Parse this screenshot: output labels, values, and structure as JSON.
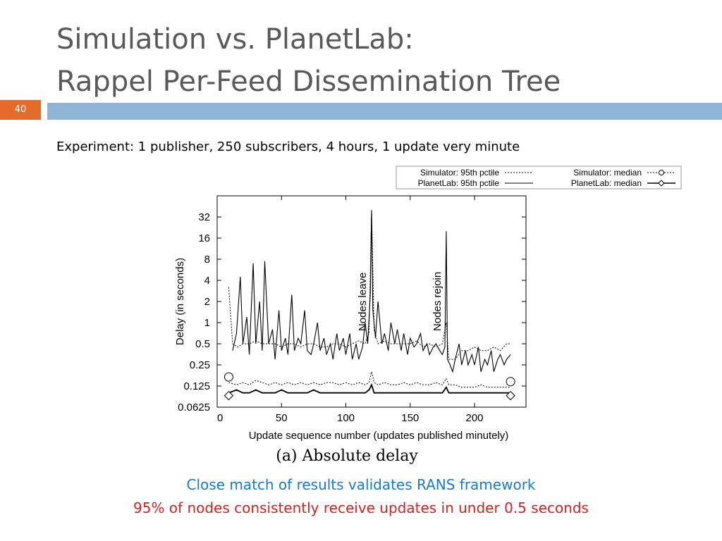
{
  "slide": {
    "title_line1": "Simulation vs. PlanetLab:",
    "title_line2": "Rappel Per-Feed Dissemination Tree",
    "page_number": "40",
    "experiment": "Experiment: 1 publisher, 250 subscribers, 4 hours, 1 update very minute",
    "note_match": "Close match of results validates RANS framework",
    "note_percentile": "95% of nodes consistently receive updates in under 0.5 seconds",
    "colors": {
      "title": "#595959",
      "bar": "#8eb4d6",
      "page_badge": "#e56b2a",
      "note_blue": "#1a7bc4",
      "note_red": "#e01d1d"
    }
  },
  "chart_data": {
    "type": "line",
    "title": "",
    "caption": "(a)  Absolute delay",
    "xlabel": "Update sequence number (updates published minutely)",
    "ylabel": "Delay (in seconds)",
    "xlim": [
      0,
      240
    ],
    "ylim": [
      0.0625,
      64
    ],
    "yscale": "log2",
    "xticks": [
      "0",
      "50",
      "100",
      "150",
      "200"
    ],
    "yticks": [
      "0.0625",
      "0.125",
      "0.25",
      "0.5",
      "1",
      "2",
      "4",
      "8",
      "16",
      "32"
    ],
    "legend": {
      "placement": "top-right-outside",
      "entries": [
        "Simulator: 95th pctile",
        "Simulator: median",
        "PlanetLab: 95th pctile",
        "PlanetLab: median"
      ]
    },
    "annotations": [
      {
        "text": "Nodes leave",
        "x": 120
      },
      {
        "text": "Nodes rejoin",
        "x": 178
      }
    ],
    "series": [
      {
        "name": "Simulator: 95th pctile",
        "style": "dotted",
        "x": [
          9,
          12,
          16,
          20,
          25,
          30,
          35,
          40,
          45,
          50,
          55,
          60,
          65,
          70,
          75,
          80,
          85,
          90,
          95,
          100,
          105,
          110,
          115,
          118,
          120,
          122,
          125,
          130,
          135,
          140,
          145,
          150,
          155,
          160,
          165,
          170,
          175,
          178,
          180,
          185,
          190,
          195,
          200,
          205,
          210,
          215,
          220,
          225,
          228
        ],
        "y": [
          3.2,
          0.5,
          0.45,
          0.5,
          0.5,
          0.55,
          0.5,
          0.5,
          0.5,
          0.45,
          0.5,
          0.5,
          0.45,
          0.5,
          0.5,
          0.45,
          0.45,
          0.5,
          0.5,
          0.45,
          0.5,
          0.55,
          0.5,
          0.7,
          40,
          0.8,
          0.5,
          0.55,
          0.5,
          0.5,
          0.5,
          0.5,
          0.55,
          0.45,
          0.5,
          0.45,
          0.5,
          1.0,
          0.3,
          0.3,
          0.4,
          0.4,
          0.45,
          0.4,
          0.4,
          0.45,
          0.4,
          0.5,
          0.5
        ]
      },
      {
        "name": "Simulator: median",
        "style": "dotted-circle",
        "x": [
          9,
          15,
          20,
          25,
          30,
          35,
          40,
          45,
          50,
          55,
          60,
          65,
          70,
          75,
          80,
          85,
          90,
          95,
          100,
          105,
          110,
          115,
          118,
          120,
          122,
          125,
          130,
          135,
          140,
          145,
          150,
          155,
          160,
          165,
          170,
          175,
          178,
          180,
          185,
          190,
          195,
          200,
          205,
          210,
          215,
          220,
          225,
          228
        ],
        "y": [
          0.14,
          0.13,
          0.14,
          0.13,
          0.15,
          0.14,
          0.13,
          0.14,
          0.13,
          0.14,
          0.13,
          0.14,
          0.13,
          0.14,
          0.13,
          0.14,
          0.14,
          0.13,
          0.14,
          0.13,
          0.14,
          0.13,
          0.14,
          0.2,
          0.14,
          0.13,
          0.14,
          0.13,
          0.13,
          0.14,
          0.13,
          0.14,
          0.13,
          0.13,
          0.14,
          0.13,
          0.16,
          0.13,
          0.13,
          0.12,
          0.12,
          0.12,
          0.13,
          0.12,
          0.12,
          0.12,
          0.12,
          0.12
        ]
      },
      {
        "name": "PlanetLab: 95th pctile",
        "style": "solid",
        "x": [
          12,
          15,
          18,
          20,
          23,
          25,
          28,
          30,
          33,
          35,
          37,
          40,
          43,
          45,
          48,
          50,
          53,
          55,
          58,
          60,
          63,
          65,
          68,
          70,
          73,
          75,
          78,
          80,
          83,
          85,
          88,
          90,
          93,
          95,
          98,
          100,
          103,
          105,
          108,
          110,
          113,
          115,
          117,
          119,
          120,
          121,
          123,
          125,
          128,
          130,
          133,
          135,
          138,
          140,
          143,
          145,
          148,
          150,
          153,
          155,
          158,
          160,
          163,
          165,
          168,
          170,
          173,
          175,
          177,
          178,
          179,
          181,
          183,
          185,
          188,
          190,
          193,
          195,
          198,
          200,
          203,
          205,
          208,
          210,
          213,
          215,
          218,
          220,
          223,
          225,
          228
        ],
        "y": [
          0.4,
          0.7,
          4.5,
          0.5,
          1.2,
          0.35,
          7.0,
          0.5,
          2.0,
          0.4,
          7.5,
          0.5,
          0.8,
          0.3,
          1.5,
          0.4,
          0.6,
          0.35,
          2.5,
          0.4,
          0.6,
          0.5,
          1.5,
          0.4,
          0.35,
          0.5,
          1.0,
          0.4,
          0.6,
          0.35,
          0.5,
          0.3,
          0.7,
          0.4,
          0.6,
          0.35,
          0.7,
          0.3,
          0.5,
          0.3,
          0.45,
          1.0,
          0.5,
          2.5,
          40,
          1.5,
          0.6,
          2.0,
          0.5,
          0.7,
          0.4,
          1.0,
          0.5,
          0.8,
          0.4,
          0.7,
          0.35,
          0.6,
          0.45,
          0.5,
          0.7,
          0.4,
          0.5,
          0.35,
          0.45,
          0.5,
          0.4,
          0.35,
          0.45,
          20,
          0.3,
          0.25,
          0.2,
          0.3,
          0.5,
          0.25,
          0.4,
          0.25,
          0.35,
          0.25,
          0.45,
          0.2,
          0.3,
          0.25,
          0.4,
          0.2,
          0.3,
          0.35,
          0.25,
          0.3,
          0.35
        ]
      },
      {
        "name": "PlanetLab: median",
        "style": "solid-diamond",
        "x": [
          9,
          15,
          20,
          25,
          30,
          35,
          40,
          45,
          50,
          55,
          60,
          65,
          70,
          75,
          80,
          85,
          90,
          95,
          100,
          105,
          110,
          115,
          118,
          120,
          122,
          125,
          130,
          135,
          140,
          145,
          150,
          155,
          160,
          165,
          170,
          175,
          178,
          180,
          185,
          190,
          195,
          200,
          205,
          210,
          215,
          220,
          225,
          228
        ],
        "y": [
          0.1,
          0.11,
          0.1,
          0.1,
          0.11,
          0.1,
          0.1,
          0.1,
          0.11,
          0.1,
          0.1,
          0.1,
          0.1,
          0.11,
          0.1,
          0.1,
          0.1,
          0.1,
          0.1,
          0.1,
          0.1,
          0.1,
          0.11,
          0.13,
          0.1,
          0.1,
          0.1,
          0.1,
          0.1,
          0.1,
          0.1,
          0.1,
          0.1,
          0.1,
          0.1,
          0.1,
          0.12,
          0.1,
          0.1,
          0.1,
          0.1,
          0.1,
          0.1,
          0.1,
          0.1,
          0.1,
          0.1,
          0.1
        ]
      }
    ]
  }
}
